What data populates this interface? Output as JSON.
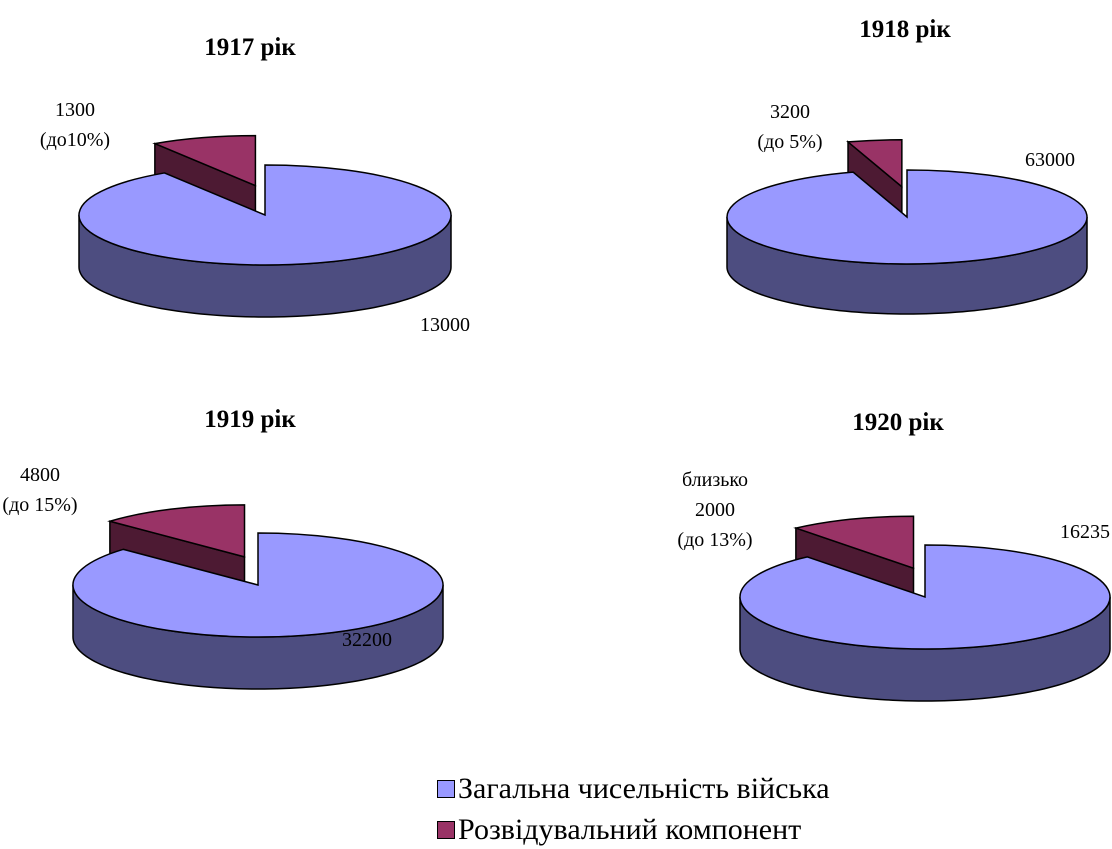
{
  "chart_data": [
    {
      "type": "pie3d",
      "title": "1917 рік",
      "values": [
        13000,
        1300
      ],
      "value_labels": [
        "13000",
        "1300\n(до10%)"
      ]
    },
    {
      "type": "pie3d",
      "title": "1918 рік",
      "values": [
        63000,
        3200
      ],
      "value_labels": [
        "63000",
        "3200\n(до 5%)"
      ]
    },
    {
      "type": "pie3d",
      "title": "1919 рік",
      "values": [
        32200,
        4800
      ],
      "value_labels": [
        "32200",
        "4800\n(до 15%)"
      ]
    },
    {
      "type": "pie3d",
      "title": "1920 рік",
      "values": [
        16235,
        2000
      ],
      "value_labels": [
        "16235",
        "близько\n2000\n(до 13%)"
      ]
    }
  ],
  "legend": {
    "categories": [
      "Загальна чисельність війська",
      "Розвідувальний компонент"
    ],
    "colors": [
      "#9999ff",
      "#993366"
    ]
  }
}
